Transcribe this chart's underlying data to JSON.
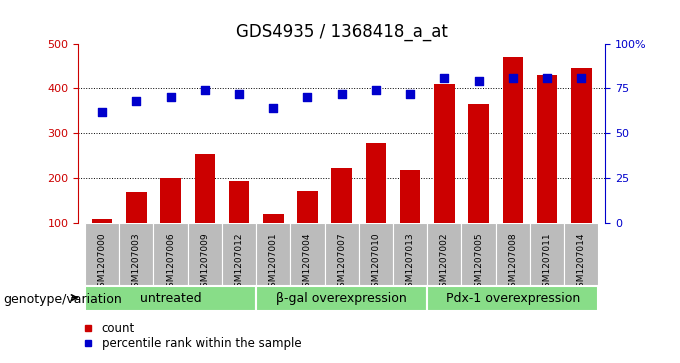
{
  "title": "GDS4935 / 1368418_a_at",
  "samples": [
    "GSM1207000",
    "GSM1207003",
    "GSM1207006",
    "GSM1207009",
    "GSM1207012",
    "GSM1207001",
    "GSM1207004",
    "GSM1207007",
    "GSM1207010",
    "GSM1207013",
    "GSM1207002",
    "GSM1207005",
    "GSM1207008",
    "GSM1207011",
    "GSM1207014"
  ],
  "counts": [
    110,
    170,
    200,
    255,
    195,
    120,
    172,
    222,
    278,
    218,
    410,
    365,
    470,
    430,
    445
  ],
  "percentiles": [
    62,
    68,
    70,
    74,
    72,
    64,
    70,
    72,
    74,
    72,
    81,
    79,
    81,
    81,
    81
  ],
  "groups": [
    {
      "label": "untreated",
      "start": 0,
      "end": 5
    },
    {
      "label": "β-gal overexpression",
      "start": 5,
      "end": 10
    },
    {
      "label": "Pdx-1 overexpression",
      "start": 10,
      "end": 15
    }
  ],
  "bar_color": "#cc0000",
  "dot_color": "#0000cc",
  "group_bg_color": "#88dd88",
  "group_border_color": "#ffffff",
  "tick_bg_color": "#bbbbbb",
  "left_axis_color": "#cc0000",
  "right_axis_color": "#0000cc",
  "ylim_left": [
    100,
    500
  ],
  "ylim_right": [
    0,
    100
  ],
  "yticks_left": [
    100,
    200,
    300,
    400,
    500
  ],
  "yticks_right": [
    0,
    25,
    50,
    75,
    100
  ],
  "ytick_labels_right": [
    "0",
    "25",
    "50",
    "75",
    "100%"
  ],
  "bar_width": 0.6,
  "dot_size": 40,
  "legend_count_label": "count",
  "legend_pct_label": "percentile rank within the sample",
  "xlabel_area": "genotype/variation",
  "background_color": "#ffffff",
  "grid_color": "#000000",
  "title_fontsize": 12,
  "label_fontsize": 9,
  "tick_fontsize": 8,
  "group_fontsize": 9
}
